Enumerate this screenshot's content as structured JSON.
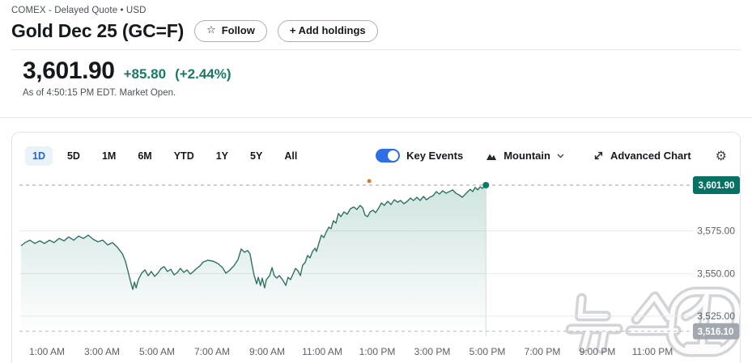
{
  "header": {
    "exchange_line": "COMEX - Delayed Quote • USD",
    "title": "Gold Dec 25 (GC=F)",
    "follow_label": "Follow",
    "follow_icon": "☆",
    "add_holdings_label": "+ Add holdings",
    "price": "3,601.90",
    "change": "+85.80",
    "change_percent": "(+2.44%)",
    "as_of": "As of 4:50:15 PM EDT. Market Open."
  },
  "toolbar": {
    "ranges": [
      "1D",
      "5D",
      "1M",
      "6M",
      "YTD",
      "1Y",
      "5Y",
      "All"
    ],
    "selected_range": "1D",
    "key_events_label": "Key Events",
    "key_events_on": true,
    "chart_type_label": "Mountain",
    "advanced_chart_label": "Advanced Chart"
  },
  "watermark_text": "뉴스1",
  "colors": {
    "positive_green": "#177a62",
    "line": "#2e7164",
    "line_dot": "#0a7a68",
    "area_top": "#117a65",
    "gridline": "#e8eaed",
    "axis_text": "#5a6169",
    "dashed_current": "#9aa1a8",
    "dashed_prev": "#b4b9bf",
    "badge_current_bg": "#077263",
    "badge_prev_bg": "#9ba1a9",
    "accent_blue": "#2e6fe6",
    "tab_selected_blue": "#2a66c8"
  },
  "chart_data": {
    "type": "area",
    "title": "Gold Dec 25 (GC=F) intraday price, 1D mountain chart",
    "xlabel": "",
    "ylabel": "",
    "grid": true,
    "x_range_hours": [
      0,
      24
    ],
    "y_range": [
      3510,
      3610
    ],
    "current_price": 3601.9,
    "current_price_label": "3,601.90",
    "previous_close": 3516.1,
    "previous_close_label": "3,516.10",
    "event_marker": {
      "hour": 12.71,
      "color": "#e0762a"
    },
    "data_end_hour": 16.95,
    "y_ticks": [
      {
        "value": 3575.0,
        "label": "3,575.00"
      },
      {
        "value": 3550.0,
        "label": "3,550.00"
      },
      {
        "value": 3525.0,
        "label": "3,525.00"
      }
    ],
    "x_ticks": [
      {
        "hour": 1,
        "label": "1:00 AM"
      },
      {
        "hour": 3,
        "label": "3:00 AM"
      },
      {
        "hour": 5,
        "label": "5:00 AM"
      },
      {
        "hour": 7,
        "label": "7:00 AM"
      },
      {
        "hour": 9,
        "label": "9:00 AM"
      },
      {
        "hour": 11,
        "label": "11:00 AM"
      },
      {
        "hour": 13,
        "label": "1:00 PM"
      },
      {
        "hour": 15,
        "label": "3:00 PM"
      },
      {
        "hour": 17,
        "label": "5:00 PM"
      },
      {
        "hour": 19,
        "label": "7:00 PM"
      },
      {
        "hour": 21,
        "label": "9:00 PM"
      },
      {
        "hour": 23,
        "label": "11:00 PM"
      }
    ],
    "series": [
      {
        "name": "GC=F",
        "points": [
          [
            0.06,
            3566.3
          ],
          [
            0.21,
            3568.2
          ],
          [
            0.38,
            3569.6
          ],
          [
            0.56,
            3567.7
          ],
          [
            0.74,
            3569.2
          ],
          [
            0.91,
            3567.7
          ],
          [
            1.09,
            3569.6
          ],
          [
            1.26,
            3568.2
          ],
          [
            1.44,
            3570.6
          ],
          [
            1.62,
            3569.2
          ],
          [
            1.79,
            3571.5
          ],
          [
            1.97,
            3569.6
          ],
          [
            2.15,
            3572.0
          ],
          [
            2.32,
            3570.6
          ],
          [
            2.5,
            3572.5
          ],
          [
            2.68,
            3570.1
          ],
          [
            2.85,
            3568.7
          ],
          [
            3.03,
            3569.6
          ],
          [
            3.21,
            3566.8
          ],
          [
            3.38,
            3568.2
          ],
          [
            3.56,
            3565.4
          ],
          [
            3.74,
            3561.6
          ],
          [
            3.85,
            3557.3
          ],
          [
            3.97,
            3549.7
          ],
          [
            4.06,
            3544.0
          ],
          [
            4.12,
            3540.7
          ],
          [
            4.18,
            3545.0
          ],
          [
            4.24,
            3541.6
          ],
          [
            4.32,
            3546.4
          ],
          [
            4.44,
            3550.2
          ],
          [
            4.56,
            3552.1
          ],
          [
            4.68,
            3548.8
          ],
          [
            4.79,
            3551.2
          ],
          [
            4.91,
            3548.3
          ],
          [
            5.03,
            3550.2
          ],
          [
            5.15,
            3553.0
          ],
          [
            5.26,
            3554.0
          ],
          [
            5.38,
            3551.2
          ],
          [
            5.5,
            3552.5
          ],
          [
            5.62,
            3549.2
          ],
          [
            5.74,
            3550.7
          ],
          [
            5.85,
            3553.0
          ],
          [
            5.97,
            3550.7
          ],
          [
            6.09,
            3552.1
          ],
          [
            6.21,
            3549.7
          ],
          [
            6.32,
            3551.2
          ],
          [
            6.44,
            3553.0
          ],
          [
            6.56,
            3554.5
          ],
          [
            6.68,
            3556.8
          ],
          [
            6.85,
            3557.8
          ],
          [
            7.03,
            3557.3
          ],
          [
            7.21,
            3555.9
          ],
          [
            7.38,
            3553.5
          ],
          [
            7.5,
            3550.2
          ],
          [
            7.65,
            3552.1
          ],
          [
            7.79,
            3554.5
          ],
          [
            7.94,
            3558.2
          ],
          [
            8.06,
            3564.4
          ],
          [
            8.18,
            3562.5
          ],
          [
            8.29,
            3563.5
          ],
          [
            8.38,
            3561.6
          ],
          [
            8.44,
            3555.9
          ],
          [
            8.53,
            3548.8
          ],
          [
            8.62,
            3544.0
          ],
          [
            8.68,
            3547.8
          ],
          [
            8.76,
            3543.0
          ],
          [
            8.82,
            3547.3
          ],
          [
            8.91,
            3541.6
          ],
          [
            8.97,
            3546.4
          ],
          [
            9.09,
            3548.8
          ],
          [
            9.18,
            3553.5
          ],
          [
            9.26,
            3548.8
          ],
          [
            9.35,
            3547.3
          ],
          [
            9.44,
            3548.8
          ],
          [
            9.56,
            3546.4
          ],
          [
            9.68,
            3543.0
          ],
          [
            9.76,
            3547.8
          ],
          [
            9.85,
            3546.4
          ],
          [
            9.94,
            3549.7
          ],
          [
            10.03,
            3553.0
          ],
          [
            10.12,
            3551.6
          ],
          [
            10.21,
            3548.8
          ],
          [
            10.29,
            3554.9
          ],
          [
            10.38,
            3556.4
          ],
          [
            10.47,
            3560.6
          ],
          [
            10.56,
            3559.2
          ],
          [
            10.65,
            3563.0
          ],
          [
            10.74,
            3564.9
          ],
          [
            10.79,
            3563.0
          ],
          [
            10.88,
            3567.7
          ],
          [
            10.97,
            3572.5
          ],
          [
            11.06,
            3571.1
          ],
          [
            11.15,
            3574.4
          ],
          [
            11.24,
            3577.2
          ],
          [
            11.32,
            3576.3
          ],
          [
            11.41,
            3581.0
          ],
          [
            11.5,
            3579.6
          ],
          [
            11.59,
            3585.3
          ],
          [
            11.68,
            3583.4
          ],
          [
            11.79,
            3586.2
          ],
          [
            11.91,
            3584.8
          ],
          [
            12.03,
            3588.1
          ],
          [
            12.15,
            3589.1
          ],
          [
            12.26,
            3587.6
          ],
          [
            12.38,
            3590.0
          ],
          [
            12.47,
            3588.6
          ],
          [
            12.56,
            3584.3
          ],
          [
            12.65,
            3583.4
          ],
          [
            12.74,
            3586.2
          ],
          [
            12.85,
            3587.2
          ],
          [
            12.94,
            3585.7
          ],
          [
            13.06,
            3588.6
          ],
          [
            13.15,
            3591.4
          ],
          [
            13.26,
            3590.0
          ],
          [
            13.38,
            3592.4
          ],
          [
            13.5,
            3590.5
          ],
          [
            13.62,
            3593.3
          ],
          [
            13.74,
            3591.9
          ],
          [
            13.85,
            3592.9
          ],
          [
            13.97,
            3591.0
          ],
          [
            14.09,
            3592.4
          ],
          [
            14.21,
            3594.3
          ],
          [
            14.32,
            3592.9
          ],
          [
            14.44,
            3594.8
          ],
          [
            14.56,
            3592.9
          ],
          [
            14.68,
            3595.3
          ],
          [
            14.79,
            3593.3
          ],
          [
            14.91,
            3594.8
          ],
          [
            15.03,
            3595.7
          ],
          [
            15.15,
            3598.1
          ],
          [
            15.26,
            3596.7
          ],
          [
            15.38,
            3598.6
          ],
          [
            15.5,
            3597.2
          ],
          [
            15.62,
            3598.1
          ],
          [
            15.74,
            3599.1
          ],
          [
            15.85,
            3597.2
          ],
          [
            15.97,
            3596.2
          ],
          [
            16.09,
            3594.8
          ],
          [
            16.21,
            3596.7
          ],
          [
            16.29,
            3598.1
          ],
          [
            16.38,
            3599.5
          ],
          [
            16.47,
            3598.1
          ],
          [
            16.56,
            3600.5
          ],
          [
            16.65,
            3599.1
          ],
          [
            16.74,
            3600.9
          ],
          [
            16.82,
            3600.0
          ],
          [
            16.91,
            3601.4
          ],
          [
            16.95,
            3601.9
          ]
        ]
      }
    ]
  }
}
